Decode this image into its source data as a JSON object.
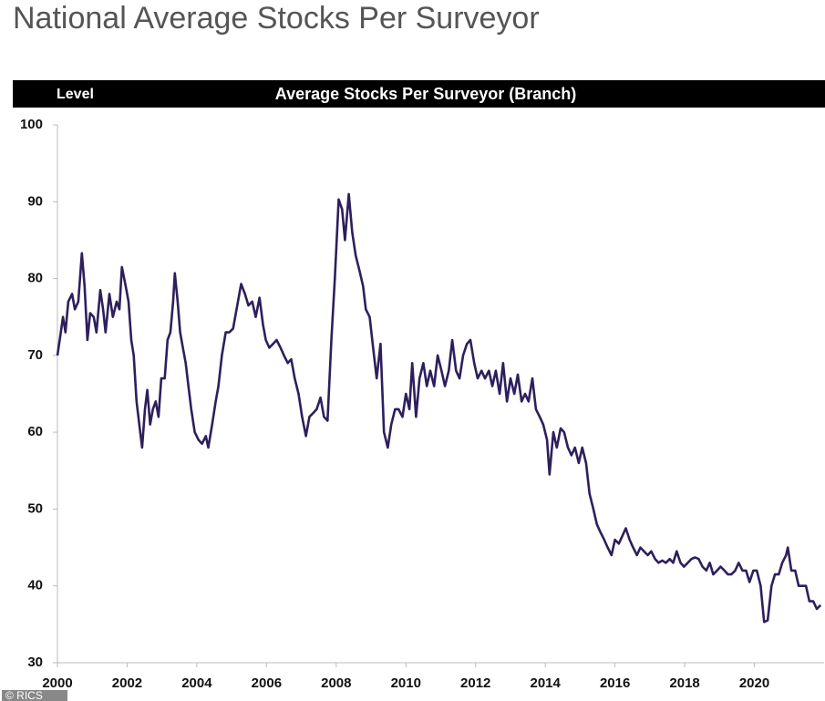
{
  "chart_data": {
    "type": "line",
    "title": "National Average Stocks Per Surveyor",
    "panel_label": "Level",
    "subtitle": "Average Stocks Per Surveyor (Branch)",
    "credit": "© RICS",
    "x": [
      2000.0,
      2000.08,
      2000.16,
      2000.23,
      2000.31,
      2000.42,
      2000.5,
      2000.6,
      2000.7,
      2000.78,
      2000.86,
      2000.94,
      2001.04,
      2001.12,
      2001.23,
      2001.31,
      2001.38,
      2001.49,
      2001.59,
      2001.7,
      2001.78,
      2001.85,
      2001.96,
      2002.04,
      2002.12,
      2002.19,
      2002.27,
      2002.35,
      2002.43,
      2002.51,
      2002.58,
      2002.66,
      2002.74,
      2002.82,
      2002.9,
      2002.98,
      2003.08,
      2003.16,
      2003.24,
      2003.32,
      2003.37,
      2003.45,
      2003.52,
      2003.6,
      2003.68,
      2003.76,
      2003.84,
      2003.94,
      2004.05,
      2004.15,
      2004.26,
      2004.33,
      2004.44,
      2004.54,
      2004.62,
      2004.72,
      2004.83,
      2004.93,
      2005.04,
      2005.14,
      2005.27,
      2005.38,
      2005.48,
      2005.59,
      2005.69,
      2005.8,
      2005.9,
      2005.98,
      2006.08,
      2006.19,
      2006.29,
      2006.4,
      2006.5,
      2006.61,
      2006.71,
      2006.81,
      2006.92,
      2007.02,
      2007.13,
      2007.23,
      2007.34,
      2007.44,
      2007.55,
      2007.65,
      2007.75,
      2007.86,
      2007.96,
      2008.07,
      2008.17,
      2008.25,
      2008.36,
      2008.46,
      2008.56,
      2008.67,
      2008.77,
      2008.85,
      2008.96,
      2009.06,
      2009.16,
      2009.27,
      2009.37,
      2009.48,
      2009.58,
      2009.69,
      2009.79,
      2009.9,
      2010.0,
      2010.1,
      2010.18,
      2010.29,
      2010.39,
      2010.5,
      2010.6,
      2010.7,
      2010.81,
      2010.91,
      2011.02,
      2011.12,
      2011.23,
      2011.33,
      2011.44,
      2011.54,
      2011.64,
      2011.75,
      2011.85,
      2011.96,
      2012.06,
      2012.17,
      2012.27,
      2012.38,
      2012.48,
      2012.58,
      2012.69,
      2012.79,
      2012.9,
      2013.0,
      2013.11,
      2013.21,
      2013.32,
      2013.42,
      2013.52,
      2013.63,
      2013.73,
      2013.84,
      2013.94,
      2014.05,
      2014.12,
      2014.23,
      2014.33,
      2014.44,
      2014.54,
      2014.65,
      2014.75,
      2014.85,
      2014.96,
      2015.06,
      2015.17,
      2015.27,
      2015.38,
      2015.48,
      2015.58,
      2015.69,
      2015.79,
      2015.9,
      2016.0,
      2016.11,
      2016.21,
      2016.31,
      2016.42,
      2016.52,
      2016.63,
      2016.73,
      2016.83,
      2016.94,
      2017.04,
      2017.15,
      2017.25,
      2017.36,
      2017.46,
      2017.57,
      2017.67,
      2017.77,
      2017.88,
      2017.98,
      2018.09,
      2018.19,
      2018.3,
      2018.4,
      2018.51,
      2018.62,
      2018.72,
      2018.82,
      2018.93,
      2019.03,
      2019.14,
      2019.24,
      2019.34,
      2019.45,
      2019.55,
      2019.66,
      2019.76,
      2019.86,
      2019.97,
      2020.07,
      2020.18,
      2020.28,
      2020.38,
      2020.49,
      2020.59,
      2020.7,
      2020.8,
      2020.91,
      2020.96,
      2021.06,
      2021.17,
      2021.27,
      2021.38,
      2021.48,
      2021.58,
      2021.69,
      2021.79,
      2021.9
    ],
    "series": [
      {
        "color": "#2e1f5c",
        "values": [
          70,
          72.5,
          75,
          73,
          77,
          78,
          76,
          77,
          83.3,
          79,
          72,
          75.5,
          75,
          73,
          78.5,
          76,
          73,
          78,
          75,
          77,
          76,
          81.5,
          79,
          77,
          72,
          70,
          64,
          61,
          58,
          63,
          65.5,
          61,
          63,
          64,
          62,
          67,
          67,
          72,
          73,
          77,
          80.7,
          77,
          73,
          71,
          69,
          66,
          63,
          60,
          59,
          58.5,
          59.5,
          58,
          61,
          64,
          66,
          70,
          73,
          73,
          73.5,
          76,
          79.3,
          78,
          76.5,
          77,
          75,
          77.5,
          74,
          72,
          71,
          71.5,
          72,
          71,
          70,
          69,
          69.5,
          67,
          65,
          62,
          59.5,
          62,
          62.5,
          63,
          64.5,
          62,
          61.5,
          72,
          80,
          90.3,
          89,
          85,
          91,
          86,
          83,
          81,
          79,
          76,
          75,
          71,
          67,
          71.5,
          60,
          58,
          61,
          63,
          63,
          62,
          65,
          63,
          69,
          62,
          67,
          69,
          66,
          68,
          66,
          70,
          68,
          66,
          68,
          72,
          68,
          67,
          70,
          71.5,
          72,
          69,
          67,
          68,
          67,
          68,
          66,
          68,
          65,
          69,
          64,
          67,
          65,
          67.5,
          64,
          65,
          64,
          67,
          63,
          62,
          61,
          59,
          54.5,
          60,
          58,
          60.5,
          60,
          58,
          57,
          58,
          56,
          58,
          56,
          52,
          50,
          48,
          47,
          46,
          45,
          44,
          46,
          45.5,
          46.5,
          47.5,
          46,
          45,
          44,
          45,
          44.5,
          44,
          44.5,
          43.5,
          43,
          43.3,
          43,
          43.5,
          43,
          44.5,
          43,
          42.5,
          43,
          43.5,
          43.7,
          43.5,
          42.5,
          42,
          43,
          41.5,
          42,
          42.5,
          42,
          41.5,
          41.5,
          42,
          43,
          42,
          42,
          40.5,
          42,
          42,
          40,
          35.3,
          35.5,
          40,
          41.5,
          41.5,
          43,
          44,
          45,
          42,
          42,
          40,
          40,
          40,
          38,
          38,
          37,
          37.5
        ]
      }
    ],
    "xlim": [
      2000,
      2022
    ],
    "xticks": [
      2000,
      2002,
      2004,
      2006,
      2008,
      2010,
      2012,
      2014,
      2016,
      2018,
      2020
    ],
    "ylim": [
      30,
      100
    ],
    "yticks": [
      30,
      40,
      50,
      60,
      70,
      80,
      90,
      100
    ],
    "grid": false
  }
}
